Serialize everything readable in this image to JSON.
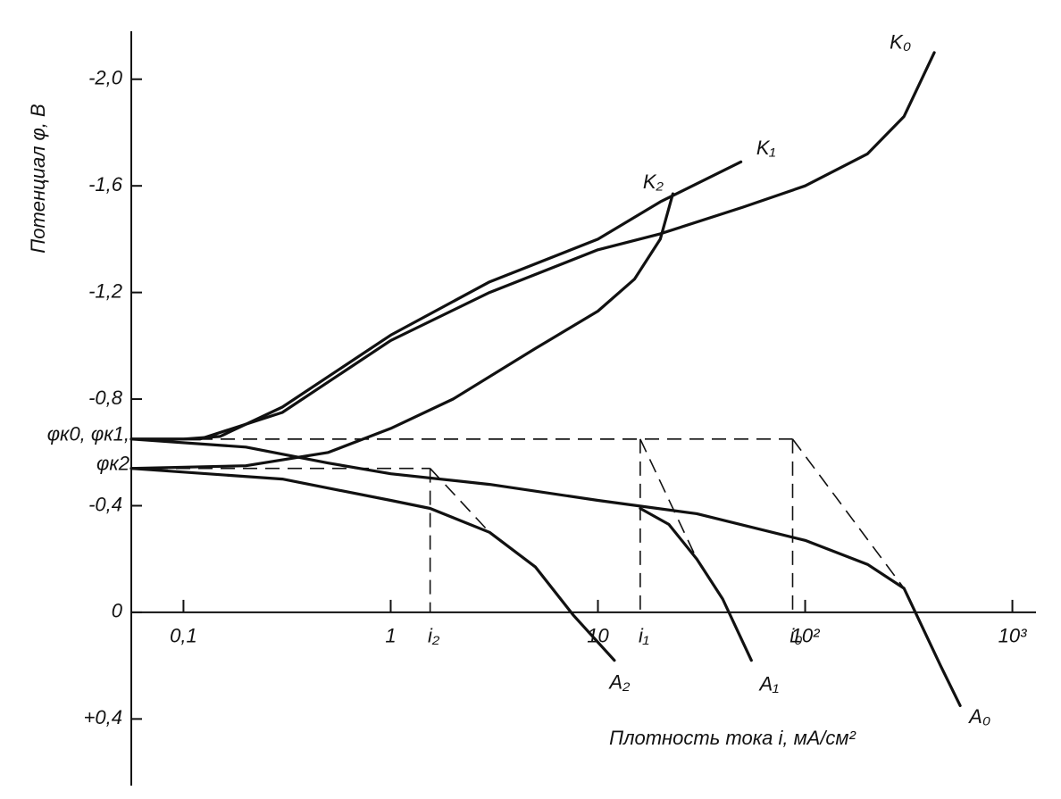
{
  "chart_data": {
    "type": "line",
    "y_label": "Потенциал φ, В",
    "x_label": "Плотность тока i, мА/см²",
    "xscale": "log",
    "xlim": [
      0.056,
      1300
    ],
    "ylim": [
      -2.18,
      0.65
    ],
    "xticks": [
      {
        "value": 0.1,
        "label": "0,1"
      },
      1,
      10,
      {
        "value": 100,
        "label": "10²"
      },
      {
        "value": 1000,
        "label": "10³"
      }
    ],
    "yticks": [
      {
        "value": -2.0,
        "label": "-2,0"
      },
      {
        "value": -1.6,
        "label": "-1,6"
      },
      {
        "value": -1.2,
        "label": "-1,2"
      },
      {
        "value": -0.8,
        "label": "-0,8"
      },
      {
        "value": -0.4,
        "label": "-0,4"
      },
      0,
      {
        "value": 0.4,
        "label": "+0,4"
      }
    ],
    "series": [
      {
        "name": "K₀",
        "color": "#111111",
        "x": [
          0.056,
          0.12,
          0.3,
          1,
          3,
          10,
          20,
          50,
          100,
          200,
          300,
          420
        ],
        "values": [
          -0.65,
          -0.65,
          -0.75,
          -1.02,
          -1.2,
          -1.36,
          -1.42,
          -1.52,
          -1.6,
          -1.72,
          -1.86,
          -2.1
        ]
      },
      {
        "name": "K₁",
        "color": "#111111",
        "x": [
          0.056,
          0.1,
          0.15,
          0.3,
          1,
          3,
          10,
          20,
          49
        ],
        "values": [
          -0.65,
          -0.65,
          -0.66,
          -0.77,
          -1.04,
          -1.24,
          -1.4,
          -1.54,
          -1.69
        ]
      },
      {
        "name": "K₂",
        "color": "#111111",
        "x": [
          0.056,
          0.2,
          0.5,
          1,
          2,
          5,
          10,
          15,
          20,
          23
        ],
        "values": [
          -0.54,
          -0.55,
          -0.6,
          -0.69,
          -0.8,
          -0.99,
          -1.13,
          -1.25,
          -1.4,
          -1.57
        ]
      },
      {
        "name": "A₀",
        "color": "#111111",
        "x": [
          0.056,
          0.2,
          0.5,
          1,
          3,
          10,
          30,
          100,
          200,
          300,
          350,
          450,
          560
        ],
        "values": [
          -0.65,
          -0.62,
          -0.56,
          -0.52,
          -0.48,
          -0.42,
          -0.37,
          -0.27,
          -0.18,
          -0.09,
          0.02,
          0.2,
          0.35
        ]
      },
      {
        "name": "A₁",
        "color": "#111111",
        "x": [
          16,
          22,
          30,
          40,
          55
        ],
        "values": [
          -0.39,
          -0.33,
          -0.2,
          -0.05,
          0.18
        ]
      },
      {
        "name": "A₂",
        "color": "#111111",
        "x": [
          0.056,
          0.3,
          1,
          1.55,
          3,
          5,
          7.6,
          12
        ],
        "values": [
          -0.54,
          -0.5,
          -0.42,
          -0.39,
          -0.3,
          -0.17,
          0.01,
          0.18
        ]
      }
    ],
    "potential_markers": [
      {
        "label": "φк0, φк1,",
        "value": -0.65
      },
      {
        "label": "φк2",
        "value": -0.54
      }
    ],
    "current_markers": [
      {
        "label": "i₂",
        "value": 1.55,
        "potential": -0.54,
        "tafel_end": [
          3,
          -0.3
        ]
      },
      {
        "label": "i₁",
        "value": 16,
        "potential": -0.65,
        "tafel_end": [
          30,
          -0.2
        ]
      },
      {
        "label": "i₀",
        "value": 87,
        "potential": -0.65,
        "tafel_end": [
          300,
          -0.09
        ]
      }
    ]
  }
}
